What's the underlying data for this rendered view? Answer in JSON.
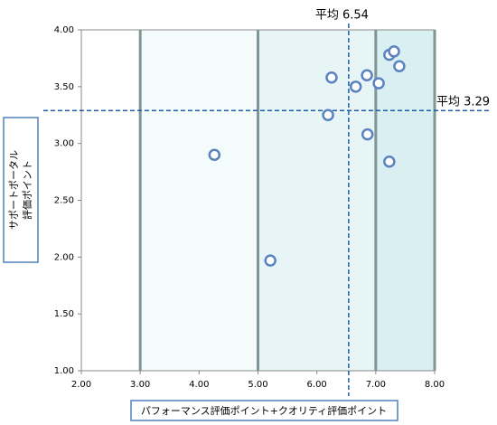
{
  "chart_data": {
    "type": "scatter",
    "xlabel": "パフォーマンス評価ポイント+クオリティ評価ポイント",
    "ylabel": [
      "サポートポータル",
      "評価ポイント"
    ],
    "xlim": [
      2,
      8
    ],
    "ylim": [
      1,
      4
    ],
    "xticks": [
      {
        "value": 2,
        "label": "2.00"
      },
      {
        "value": 3,
        "label": "3.00"
      },
      {
        "value": 4,
        "label": "4.00"
      },
      {
        "value": 5,
        "label": "5.00"
      },
      {
        "value": 6,
        "label": "6.00"
      },
      {
        "value": 7,
        "label": "7.00"
      },
      {
        "value": 8,
        "label": "8.00"
      }
    ],
    "yticks": [
      {
        "value": 1,
        "label": "1.00"
      },
      {
        "value": 1.5,
        "label": "1.50"
      },
      {
        "value": 2,
        "label": "2.00"
      },
      {
        "value": 2.5,
        "label": "2.50"
      },
      {
        "value": 3,
        "label": "3.00"
      },
      {
        "value": 3.5,
        "label": "3.50"
      },
      {
        "value": 4,
        "label": "4.00"
      }
    ],
    "zone_edges": [
      3,
      5,
      7,
      8
    ],
    "zone_colors": [
      "#f3fbfb",
      "#e8f5f6",
      "#d9eff1"
    ],
    "series": [
      {
        "color": "#5b82c0",
        "x": [
          4.26,
          5.21,
          6.25,
          6.19,
          6.66,
          6.85,
          7.05,
          6.86,
          7.23,
          7.23,
          7.31,
          7.4
        ],
        "values": [
          2.9,
          1.97,
          3.58,
          3.25,
          3.5,
          3.6,
          3.53,
          3.08,
          2.84,
          3.78,
          3.81,
          3.68
        ]
      }
    ],
    "mean_x": 6.54,
    "mean_x_label": "平均 6.54",
    "mean_y": 3.29,
    "mean_y_label": "平均 3.29",
    "mean_color": "#1f5fa8"
  }
}
